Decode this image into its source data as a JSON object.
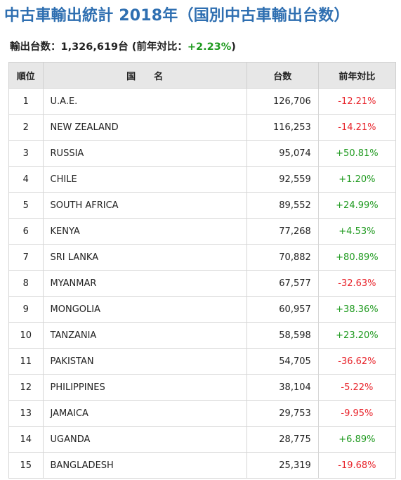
{
  "title": "中古車輸出統計 2018年（国別中古車輸出台数）",
  "summary": {
    "label": "輸出台数：1,326,619台 (前年対比：",
    "change": "+2.23%",
    "suffix": ")"
  },
  "table": {
    "headers": {
      "rank": "順位",
      "country": "国　　名",
      "units": "台数",
      "yoy": "前年対比"
    },
    "rows": [
      {
        "rank": "1",
        "country": "U.A.E.",
        "units": "126,706",
        "yoy": "-12.21%"
      },
      {
        "rank": "2",
        "country": "NEW ZEALAND",
        "units": "116,253",
        "yoy": "-14.21%"
      },
      {
        "rank": "3",
        "country": "RUSSIA",
        "units": "95,074",
        "yoy": "+50.81%"
      },
      {
        "rank": "4",
        "country": "CHILE",
        "units": "92,559",
        "yoy": "+1.20%"
      },
      {
        "rank": "5",
        "country": "SOUTH AFRICA",
        "units": "89,552",
        "yoy": "+24.99%"
      },
      {
        "rank": "6",
        "country": "KENYA",
        "units": "77,268",
        "yoy": "+4.53%"
      },
      {
        "rank": "7",
        "country": "SRI LANKA",
        "units": "70,882",
        "yoy": "+80.89%"
      },
      {
        "rank": "8",
        "country": "MYANMAR",
        "units": "67,577",
        "yoy": "-32.63%"
      },
      {
        "rank": "9",
        "country": "MONGOLIA",
        "units": "60,957",
        "yoy": "+38.36%"
      },
      {
        "rank": "10",
        "country": "TANZANIA",
        "units": "58,598",
        "yoy": "+23.20%"
      },
      {
        "rank": "11",
        "country": "PAKISTAN",
        "units": "54,705",
        "yoy": "-36.62%"
      },
      {
        "rank": "12",
        "country": "PHILIPPINES",
        "units": "38,104",
        "yoy": "-5.22%"
      },
      {
        "rank": "13",
        "country": "JAMAICA",
        "units": "29,753",
        "yoy": "-9.95%"
      },
      {
        "rank": "14",
        "country": "UGANDA",
        "units": "28,775",
        "yoy": "+6.89%"
      },
      {
        "rank": "15",
        "country": "BANGLADESH",
        "units": "25,319",
        "yoy": "-19.68%"
      }
    ]
  },
  "colors": {
    "title": "#2f6fb1",
    "positive": "#1f9a1f",
    "negative": "#e8232a",
    "header_bg": "#e7e7e7"
  }
}
